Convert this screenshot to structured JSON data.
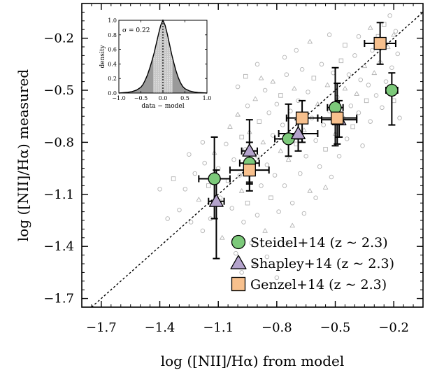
{
  "chart_data": {
    "type": "scatter",
    "xlabel": "log ([NII]/Hα) from model",
    "ylabel": "log ([NII]/Hα) measured",
    "xlim": [
      -1.8,
      -0.05
    ],
    "ylim": [
      -1.75,
      0.0
    ],
    "x_ticks": [
      -1.7,
      -1.4,
      -1.1,
      -0.8,
      -0.5,
      -0.2
    ],
    "y_ticks": [
      -1.7,
      -1.4,
      -1.1,
      -0.8,
      -0.5,
      -0.2
    ],
    "x_tick_labels": [
      "−1.7",
      "−1.4",
      "−1.1",
      "−0.8",
      "−0.5",
      "−0.2"
    ],
    "y_tick_labels": [
      "−1.7",
      "−1.4",
      "−1.1",
      "−0.8",
      "−0.5",
      "−0.2"
    ],
    "one_to_one_line": true,
    "legend_position": "bottom-right",
    "series": [
      {
        "name": "Steidel+14 (z ~ 2.3)",
        "marker": "circle",
        "color": "#7cc97a",
        "points": [
          {
            "x": -1.12,
            "y": -1.01,
            "xerr": 0.08,
            "yerr_low": 0.23,
            "yerr_high": 0.24
          },
          {
            "x": -0.94,
            "y": -0.92,
            "xerr": 0.05,
            "yerr_low": 0.12,
            "yerr_high": 0.12
          },
          {
            "x": -0.74,
            "y": -0.78,
            "xerr": 0.07,
            "yerr_low": 0.1,
            "yerr_high": 0.2
          },
          {
            "x": -0.5,
            "y": -0.6,
            "xerr": 0.04,
            "yerr_low": 0.22,
            "yerr_high": 0.23
          },
          {
            "x": -0.21,
            "y": -0.5,
            "xerr": 0.03,
            "yerr_low": 0.2,
            "yerr_high": 0.1
          }
        ]
      },
      {
        "name": "Shapley+14 (z ~ 2.3)",
        "marker": "triangle",
        "color": "#b4a3cc",
        "points": [
          {
            "x": -1.11,
            "y": -1.14,
            "xerr": 0.04,
            "yerr_low": 0.33,
            "yerr_high": 0.18
          },
          {
            "x": -0.94,
            "y": -0.85,
            "xerr": 0.04,
            "yerr_low": 0.18,
            "yerr_high": 0.18
          },
          {
            "x": -0.69,
            "y": -0.75,
            "xerr": 0.1,
            "yerr_low": 0.1,
            "yerr_high": 0.08
          },
          {
            "x": -0.48,
            "y": -0.67,
            "xerr": 0.09,
            "yerr_low": 0.1,
            "yerr_high": 0.11
          }
        ]
      },
      {
        "name": "Genzel+14 (z ~ 2.3)",
        "marker": "square",
        "color": "#f7c08d",
        "points": [
          {
            "x": -0.94,
            "y": -0.96,
            "xerr": 0.1,
            "yerr_low": 0.12,
            "yerr_high": 0.12
          },
          {
            "x": -0.67,
            "y": -0.66,
            "xerr": 0.08,
            "yerr_low": 0.14,
            "yerr_high": 0.1
          },
          {
            "x": -0.49,
            "y": -0.66,
            "xerr": 0.1,
            "yerr_low": 0.15,
            "yerr_high": 0.2
          },
          {
            "x": -0.27,
            "y": -0.23,
            "xerr": 0.08,
            "yerr_low": 0.12,
            "yerr_high": 0.12
          }
        ]
      }
    ],
    "background_sample": {
      "color": "#b4b4b4",
      "points": [
        {
          "x": -1.3,
          "y": -1.19,
          "m": "o"
        },
        {
          "x": -1.27,
          "y": -1.07,
          "m": "o"
        },
        {
          "x": -1.24,
          "y": -1.26,
          "m": "o"
        },
        {
          "x": -1.22,
          "y": -0.98,
          "m": "o"
        },
        {
          "x": -1.2,
          "y": -1.13,
          "m": "t"
        },
        {
          "x": -1.18,
          "y": -1.31,
          "m": "o"
        },
        {
          "x": -1.17,
          "y": -0.92,
          "m": "o"
        },
        {
          "x": -1.15,
          "y": -1.05,
          "m": "s"
        },
        {
          "x": -1.14,
          "y": -1.24,
          "m": "o"
        },
        {
          "x": -1.12,
          "y": -0.86,
          "m": "t"
        },
        {
          "x": -1.1,
          "y": -0.95,
          "m": "o"
        },
        {
          "x": -1.09,
          "y": -1.12,
          "m": "o"
        },
        {
          "x": -1.08,
          "y": -1.35,
          "m": "t"
        },
        {
          "x": -1.06,
          "y": -0.81,
          "m": "o"
        },
        {
          "x": -1.05,
          "y": -1.02,
          "m": "s"
        },
        {
          "x": -1.04,
          "y": -0.71,
          "m": "t"
        },
        {
          "x": -1.03,
          "y": -1.18,
          "m": "o"
        },
        {
          "x": -1.02,
          "y": -0.9,
          "m": "o"
        },
        {
          "x": -1.01,
          "y": -1.44,
          "m": "o"
        },
        {
          "x": -1.0,
          "y": -0.64,
          "m": "t"
        },
        {
          "x": -0.99,
          "y": -0.99,
          "m": "o"
        },
        {
          "x": -0.98,
          "y": -1.08,
          "m": "t"
        },
        {
          "x": -0.98,
          "y": -0.77,
          "m": "s"
        },
        {
          "x": -0.97,
          "y": -1.26,
          "m": "o"
        },
        {
          "x": -0.96,
          "y": -0.84,
          "m": "o"
        },
        {
          "x": -0.95,
          "y": -0.59,
          "m": "o"
        },
        {
          "x": -0.95,
          "y": -1.15,
          "m": "s"
        },
        {
          "x": -0.94,
          "y": -0.74,
          "m": "t"
        },
        {
          "x": -0.93,
          "y": -1.38,
          "m": "o"
        },
        {
          "x": -0.92,
          "y": -0.97,
          "m": "o"
        },
        {
          "x": -0.91,
          "y": -0.55,
          "m": "t"
        },
        {
          "x": -0.9,
          "y": -0.88,
          "m": "o"
        },
        {
          "x": -0.9,
          "y": -1.22,
          "m": "o"
        },
        {
          "x": -0.89,
          "y": -0.68,
          "m": "s"
        },
        {
          "x": -0.88,
          "y": -1.05,
          "m": "o"
        },
        {
          "x": -0.87,
          "y": -0.8,
          "m": "t"
        },
        {
          "x": -0.86,
          "y": -0.5,
          "m": "o"
        },
        {
          "x": -0.86,
          "y": -1.31,
          "m": "t"
        },
        {
          "x": -0.85,
          "y": -0.93,
          "m": "o"
        },
        {
          "x": -0.84,
          "y": -0.63,
          "m": "o"
        },
        {
          "x": -0.83,
          "y": -1.12,
          "m": "s"
        },
        {
          "x": -0.82,
          "y": -0.76,
          "m": "o"
        },
        {
          "x": -0.82,
          "y": -0.45,
          "m": "t"
        },
        {
          "x": -0.81,
          "y": -0.99,
          "m": "o"
        },
        {
          "x": -0.8,
          "y": -0.58,
          "m": "o"
        },
        {
          "x": -0.79,
          "y": -1.2,
          "m": "o"
        },
        {
          "x": -0.78,
          "y": -0.85,
          "m": "t"
        },
        {
          "x": -0.78,
          "y": -0.53,
          "m": "s"
        },
        {
          "x": -0.77,
          "y": -0.7,
          "m": "o"
        },
        {
          "x": -0.76,
          "y": -1.05,
          "m": "o"
        },
        {
          "x": -0.75,
          "y": -0.41,
          "m": "o"
        },
        {
          "x": -0.74,
          "y": -0.9,
          "m": "t"
        },
        {
          "x": -0.73,
          "y": -0.62,
          "m": "o"
        },
        {
          "x": -0.72,
          "y": -1.15,
          "m": "o"
        },
        {
          "x": -0.71,
          "y": -0.49,
          "m": "t"
        },
        {
          "x": -0.7,
          "y": -0.81,
          "m": "s"
        },
        {
          "x": -0.69,
          "y": -0.56,
          "m": "o"
        },
        {
          "x": -0.68,
          "y": -0.98,
          "m": "o"
        },
        {
          "x": -0.67,
          "y": -0.38,
          "m": "o"
        },
        {
          "x": -0.66,
          "y": -0.73,
          "m": "t"
        },
        {
          "x": -0.65,
          "y": -0.88,
          "m": "o"
        },
        {
          "x": -0.64,
          "y": -0.51,
          "m": "o"
        },
        {
          "x": -0.63,
          "y": -1.08,
          "m": "t"
        },
        {
          "x": -0.62,
          "y": -0.66,
          "m": "o"
        },
        {
          "x": -0.61,
          "y": -0.43,
          "m": "s"
        },
        {
          "x": -0.6,
          "y": -0.79,
          "m": "o"
        },
        {
          "x": -0.59,
          "y": -0.58,
          "m": "t"
        },
        {
          "x": -0.58,
          "y": -0.94,
          "m": "o"
        },
        {
          "x": -0.57,
          "y": -0.35,
          "m": "o"
        },
        {
          "x": -0.56,
          "y": -0.7,
          "m": "o"
        },
        {
          "x": -0.55,
          "y": -0.84,
          "m": "s"
        },
        {
          "x": -0.54,
          "y": -0.47,
          "m": "t"
        },
        {
          "x": -0.53,
          "y": -0.62,
          "m": "o"
        },
        {
          "x": -0.52,
          "y": -1.0,
          "m": "o"
        },
        {
          "x": -0.51,
          "y": -0.4,
          "m": "o"
        },
        {
          "x": -0.5,
          "y": -0.75,
          "m": "t"
        },
        {
          "x": -0.49,
          "y": -0.54,
          "m": "o"
        },
        {
          "x": -0.48,
          "y": -0.88,
          "m": "o"
        },
        {
          "x": -0.47,
          "y": -0.33,
          "m": "s"
        },
        {
          "x": -0.46,
          "y": -0.66,
          "m": "o"
        },
        {
          "x": -0.45,
          "y": -0.49,
          "m": "t"
        },
        {
          "x": -0.44,
          "y": -0.78,
          "m": "o"
        },
        {
          "x": -0.43,
          "y": -0.41,
          "m": "o"
        },
        {
          "x": -0.42,
          "y": -0.59,
          "m": "o"
        },
        {
          "x": -0.41,
          "y": -0.71,
          "m": "s"
        },
        {
          "x": -0.4,
          "y": -0.3,
          "m": "o"
        },
        {
          "x": -0.39,
          "y": -0.52,
          "m": "t"
        },
        {
          "x": -0.38,
          "y": -0.63,
          "m": "o"
        },
        {
          "x": -0.37,
          "y": -0.44,
          "m": "o"
        },
        {
          "x": -0.36,
          "y": -0.82,
          "m": "o"
        },
        {
          "x": -0.35,
          "y": -0.36,
          "m": "t"
        },
        {
          "x": -0.34,
          "y": -0.56,
          "m": "s"
        },
        {
          "x": -0.33,
          "y": -0.47,
          "m": "o"
        },
        {
          "x": -0.32,
          "y": -0.68,
          "m": "o"
        },
        {
          "x": -0.31,
          "y": -0.27,
          "m": "o"
        },
        {
          "x": -0.3,
          "y": -0.4,
          "m": "t"
        },
        {
          "x": -0.29,
          "y": -0.53,
          "m": "o"
        },
        {
          "x": -0.28,
          "y": -0.19,
          "m": "s"
        },
        {
          "x": -0.27,
          "y": -0.34,
          "m": "o"
        },
        {
          "x": -0.26,
          "y": -0.6,
          "m": "o"
        },
        {
          "x": -0.25,
          "y": -0.12,
          "m": "s"
        },
        {
          "x": -0.24,
          "y": -0.45,
          "m": "o"
        },
        {
          "x": -0.23,
          "y": -0.25,
          "m": "t"
        },
        {
          "x": -0.22,
          "y": -0.07,
          "m": "o"
        },
        {
          "x": -0.21,
          "y": -0.37,
          "m": "o"
        },
        {
          "x": -0.2,
          "y": -0.56,
          "m": "s"
        },
        {
          "x": -0.19,
          "y": -0.16,
          "m": "o"
        },
        {
          "x": -0.18,
          "y": -0.29,
          "m": "o"
        },
        {
          "x": -0.17,
          "y": -0.66,
          "m": "o"
        },
        {
          "x": -0.2,
          "y": -0.18,
          "m": "t"
        },
        {
          "x": -0.98,
          "y": -1.55,
          "m": "o"
        },
        {
          "x": -0.91,
          "y": -1.5,
          "m": "t"
        },
        {
          "x": -0.85,
          "y": -1.46,
          "m": "o"
        },
        {
          "x": -0.75,
          "y": -1.38,
          "m": "o"
        },
        {
          "x": -0.8,
          "y": -1.58,
          "m": "o"
        },
        {
          "x": -0.72,
          "y": -1.28,
          "m": "t"
        },
        {
          "x": -0.66,
          "y": -1.21,
          "m": "o"
        },
        {
          "x": -0.6,
          "y": -1.12,
          "m": "o"
        },
        {
          "x": -0.55,
          "y": -1.06,
          "m": "t"
        },
        {
          "x": -1.36,
          "y": -1.24,
          "m": "o"
        },
        {
          "x": -1.33,
          "y": -1.01,
          "m": "s"
        },
        {
          "x": -1.25,
          "y": -0.87,
          "m": "o"
        },
        {
          "x": -1.18,
          "y": -0.8,
          "m": "o"
        },
        {
          "x": -1.4,
          "y": -1.07,
          "m": "o"
        },
        {
          "x": -0.7,
          "y": -0.27,
          "m": "o"
        },
        {
          "x": -0.63,
          "y": -0.22,
          "m": "t"
        },
        {
          "x": -0.9,
          "y": -0.35,
          "m": "o"
        },
        {
          "x": -1.0,
          "y": -0.48,
          "m": "o"
        },
        {
          "x": -0.96,
          "y": -0.42,
          "m": "s"
        },
        {
          "x": -0.88,
          "y": -0.43,
          "m": "t"
        },
        {
          "x": -0.76,
          "y": -0.31,
          "m": "o"
        },
        {
          "x": -0.53,
          "y": -0.18,
          "m": "o"
        },
        {
          "x": -0.45,
          "y": -0.24,
          "m": "s"
        },
        {
          "x": -0.38,
          "y": -0.19,
          "m": "o"
        },
        {
          "x": -0.32,
          "y": -0.14,
          "m": "t"
        }
      ]
    },
    "inset": {
      "sigma_label": "σ = 0.22",
      "xlabel": "data − model",
      "ylabel": "density",
      "xlim": [
        -1.0,
        1.0
      ],
      "ylim": [
        0.0,
        1.0
      ],
      "x_ticks": [
        -1.0,
        -0.5,
        0.0,
        0.5,
        1.0
      ],
      "y_ticks": [
        0.0,
        0.2,
        0.4,
        0.6,
        0.8,
        1.0
      ],
      "x_tick_labels": [
        "−1.0",
        "−0.5",
        "0.0",
        "0.5",
        "1.0"
      ],
      "y_tick_labels": [
        "0.0",
        "0.2",
        "0.4",
        "0.6",
        "0.8",
        "1.0"
      ],
      "sigma": 0.22,
      "curve": {
        "x": [
          -1.0,
          -0.9,
          -0.8,
          -0.7,
          -0.6,
          -0.5,
          -0.45,
          -0.4,
          -0.35,
          -0.3,
          -0.25,
          -0.2,
          -0.15,
          -0.1,
          -0.05,
          0.0,
          0.05,
          0.1,
          0.15,
          0.2,
          0.25,
          0.3,
          0.35,
          0.4,
          0.45,
          0.5,
          0.6,
          0.7,
          0.8,
          0.9,
          1.0
        ],
        "y": [
          0.0,
          0.005,
          0.01,
          0.02,
          0.04,
          0.08,
          0.12,
          0.18,
          0.25,
          0.34,
          0.44,
          0.55,
          0.68,
          0.81,
          0.93,
          1.0,
          0.93,
          0.81,
          0.67,
          0.53,
          0.41,
          0.3,
          0.21,
          0.14,
          0.09,
          0.06,
          0.03,
          0.015,
          0.008,
          0.004,
          0.0
        ]
      }
    }
  }
}
